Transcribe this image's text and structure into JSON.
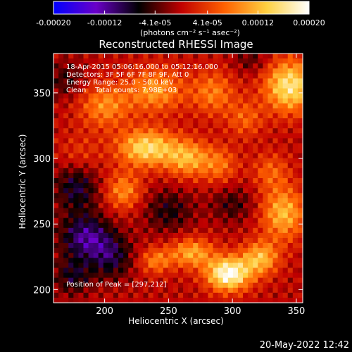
{
  "chart_data": {
    "type": "heatmap",
    "title": "Reconstructed RHESSI Image",
    "xlabel": "Heliocentric X (arcsec)",
    "ylabel": "Heliocentric Y (arcsec)",
    "xlim": [
      160,
      355
    ],
    "ylim": [
      190,
      380
    ],
    "x_ticks": [
      200,
      250,
      300,
      350
    ],
    "y_ticks": [
      200,
      250,
      300,
      350
    ],
    "colorbar": {
      "label": "(photons cm⁻² s⁻¹ asec⁻²)",
      "range": [
        -0.0002,
        0.0002
      ],
      "tick_values": [
        -0.0002,
        -0.00012,
        -4.1e-05,
        4.1e-05,
        0.00012,
        0.0002
      ],
      "tick_labels": [
        "-0.00020",
        "-0.00012",
        "-4.1e-05",
        "4.1e-05",
        "0.00012",
        "0.00020"
      ],
      "colors": [
        "#0000ff",
        "#6a00c8",
        "#000000",
        "#c00000",
        "#ff6000",
        "#ffd040",
        "#ffffff"
      ]
    },
    "annotations": {
      "time_range": "18-Apr-2015 05:06:16.000 to 05:12:16.000",
      "detectors": "Detectors: 3F 5F 6F 7F 8F 9F, Att 0",
      "energy_range": "Energy Range: 25.0 - 50.0 keV",
      "method_counts": "Clean    Total counts: 7.98E+03",
      "peak": "Position of Peak = [297,212]"
    },
    "peak_position": [
      297,
      212
    ],
    "grid": false,
    "grid_size": 50,
    "sources": [
      {
        "x": 297,
        "y": 212,
        "sx": 12,
        "sy": 9,
        "amp": 0.0002
      },
      {
        "x": 322,
        "y": 224,
        "sx": 10,
        "sy": 9,
        "amp": 0.00012
      },
      {
        "x": 268,
        "y": 228,
        "sx": 12,
        "sy": 8,
        "amp": 0.00011
      },
      {
        "x": 240,
        "y": 222,
        "sx": 9,
        "sy": 7,
        "amp": 8e-05
      },
      {
        "x": 340,
        "y": 258,
        "sx": 12,
        "sy": 14,
        "amp": 0.00012
      },
      {
        "x": 345,
        "y": 355,
        "sx": 14,
        "sy": 14,
        "amp": 0.00016
      },
      {
        "x": 233,
        "y": 308,
        "sx": 16,
        "sy": 10,
        "amp": 0.00015
      },
      {
        "x": 265,
        "y": 300,
        "sx": 12,
        "sy": 10,
        "amp": 0.00011
      },
      {
        "x": 290,
        "y": 295,
        "sx": 10,
        "sy": 10,
        "amp": 7e-05
      },
      {
        "x": 215,
        "y": 275,
        "sx": 10,
        "sy": 10,
        "amp": 9e-05
      },
      {
        "x": 200,
        "y": 340,
        "sx": 14,
        "sy": 12,
        "amp": 9e-05
      },
      {
        "x": 240,
        "y": 352,
        "sx": 16,
        "sy": 12,
        "amp": 0.0001
      },
      {
        "x": 285,
        "y": 350,
        "sx": 12,
        "sy": 12,
        "amp": 8e-05
      },
      {
        "x": 310,
        "y": 330,
        "sx": 10,
        "sy": 10,
        "amp": 6e-05
      },
      {
        "x": 180,
        "y": 300,
        "sx": 12,
        "sy": 12,
        "amp": 5e-05
      },
      {
        "x": 330,
        "y": 290,
        "sx": 10,
        "sy": 10,
        "amp": 6e-05
      },
      {
        "x": 185,
        "y": 240,
        "sx": 14,
        "sy": 12,
        "amp": -0.00011
      },
      {
        "x": 178,
        "y": 280,
        "sx": 12,
        "sy": 14,
        "amp": -9e-05
      },
      {
        "x": 205,
        "y": 225,
        "sx": 12,
        "sy": 12,
        "amp": -8e-05
      },
      {
        "x": 175,
        "y": 210,
        "sx": 10,
        "sy": 10,
        "amp": -7e-05
      },
      {
        "x": 250,
        "y": 260,
        "sx": 14,
        "sy": 12,
        "amp": -6e-05
      },
      {
        "x": 300,
        "y": 265,
        "sx": 12,
        "sy": 10,
        "amp": -5e-05
      },
      {
        "x": 170,
        "y": 360,
        "sx": 10,
        "sy": 10,
        "amp": -5e-05
      },
      {
        "x": 315,
        "y": 375,
        "sx": 10,
        "sy": 8,
        "amp": -4e-05
      }
    ]
  },
  "footer": {
    "timestamp": "20-May-2022 12:42"
  }
}
